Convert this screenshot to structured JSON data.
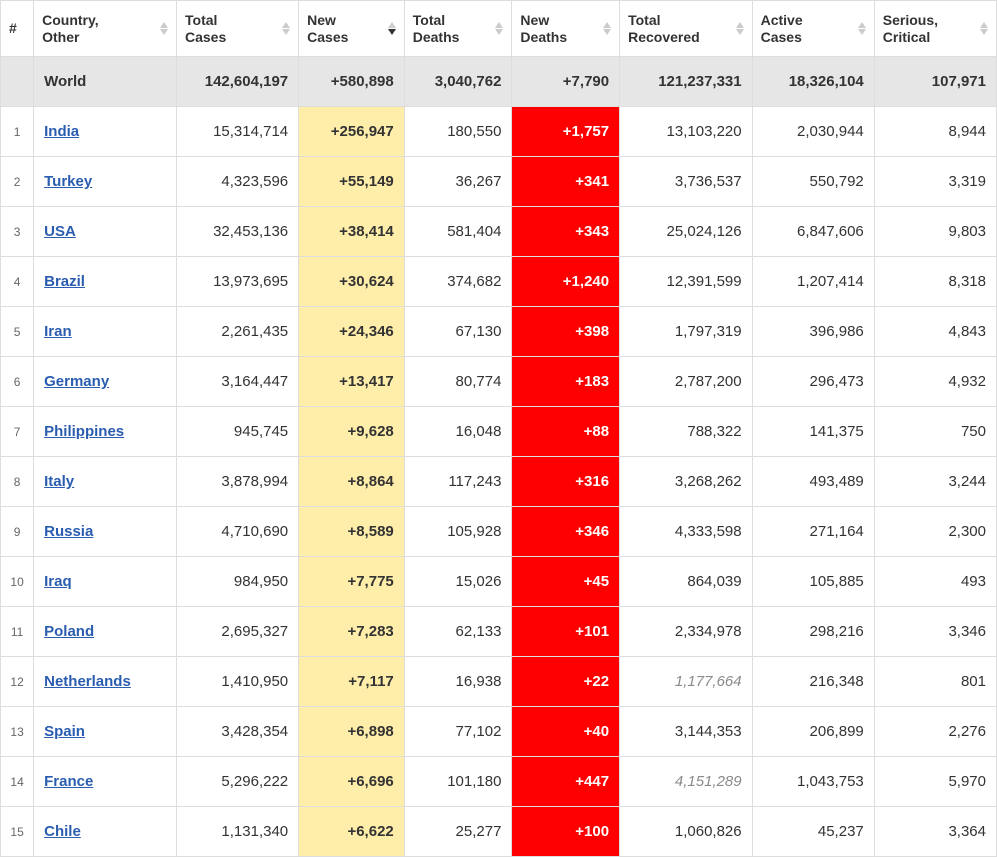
{
  "columns": [
    {
      "key": "rank",
      "label": "#",
      "sortable": false,
      "align": "center"
    },
    {
      "key": "country",
      "label": "Country,\nOther",
      "sortable": true,
      "sortActive": false,
      "align": "left"
    },
    {
      "key": "totalCases",
      "label": "Total\nCases",
      "sortable": true,
      "sortActive": false,
      "align": "right"
    },
    {
      "key": "newCases",
      "label": "New\nCases",
      "sortable": true,
      "sortActive": true,
      "sortDir": "desc",
      "align": "right"
    },
    {
      "key": "totalDeaths",
      "label": "Total\nDeaths",
      "sortable": true,
      "sortActive": false,
      "align": "right"
    },
    {
      "key": "newDeaths",
      "label": "New\nDeaths",
      "sortable": true,
      "sortActive": false,
      "align": "right"
    },
    {
      "key": "totalRecovered",
      "label": "Total\nRecovered",
      "sortable": true,
      "sortActive": false,
      "align": "right"
    },
    {
      "key": "activeCases",
      "label": "Active\nCases",
      "sortable": true,
      "sortActive": false,
      "align": "right"
    },
    {
      "key": "seriousCritical",
      "label": "Serious,\nCritical",
      "sortable": true,
      "sortActive": false,
      "align": "right"
    }
  ],
  "worldRow": {
    "country": "World",
    "totalCases": "142,604,197",
    "newCases": "+580,898",
    "totalDeaths": "3,040,762",
    "newDeaths": "+7,790",
    "totalRecovered": "121,237,331",
    "activeCases": "18,326,104",
    "seriousCritical": "107,971"
  },
  "rows": [
    {
      "rank": "1",
      "country": "India",
      "totalCases": "15,314,714",
      "newCases": "+256,947",
      "totalDeaths": "180,550",
      "newDeaths": "+1,757",
      "totalRecovered": "13,103,220",
      "activeCases": "2,030,944",
      "seriousCritical": "8,944"
    },
    {
      "rank": "2",
      "country": "Turkey",
      "totalCases": "4,323,596",
      "newCases": "+55,149",
      "totalDeaths": "36,267",
      "newDeaths": "+341",
      "totalRecovered": "3,736,537",
      "activeCases": "550,792",
      "seriousCritical": "3,319"
    },
    {
      "rank": "3",
      "country": "USA",
      "totalCases": "32,453,136",
      "newCases": "+38,414",
      "totalDeaths": "581,404",
      "newDeaths": "+343",
      "totalRecovered": "25,024,126",
      "activeCases": "6,847,606",
      "seriousCritical": "9,803"
    },
    {
      "rank": "4",
      "country": "Brazil",
      "totalCases": "13,973,695",
      "newCases": "+30,624",
      "totalDeaths": "374,682",
      "newDeaths": "+1,240",
      "totalRecovered": "12,391,599",
      "activeCases": "1,207,414",
      "seriousCritical": "8,318"
    },
    {
      "rank": "5",
      "country": "Iran",
      "totalCases": "2,261,435",
      "newCases": "+24,346",
      "totalDeaths": "67,130",
      "newDeaths": "+398",
      "totalRecovered": "1,797,319",
      "activeCases": "396,986",
      "seriousCritical": "4,843"
    },
    {
      "rank": "6",
      "country": "Germany",
      "totalCases": "3,164,447",
      "newCases": "+13,417",
      "totalDeaths": "80,774",
      "newDeaths": "+183",
      "totalRecovered": "2,787,200",
      "activeCases": "296,473",
      "seriousCritical": "4,932"
    },
    {
      "rank": "7",
      "country": "Philippines",
      "totalCases": "945,745",
      "newCases": "+9,628",
      "totalDeaths": "16,048",
      "newDeaths": "+88",
      "totalRecovered": "788,322",
      "activeCases": "141,375",
      "seriousCritical": "750"
    },
    {
      "rank": "8",
      "country": "Italy",
      "totalCases": "3,878,994",
      "newCases": "+8,864",
      "totalDeaths": "117,243",
      "newDeaths": "+316",
      "totalRecovered": "3,268,262",
      "activeCases": "493,489",
      "seriousCritical": "3,244"
    },
    {
      "rank": "9",
      "country": "Russia",
      "totalCases": "4,710,690",
      "newCases": "+8,589",
      "totalDeaths": "105,928",
      "newDeaths": "+346",
      "totalRecovered": "4,333,598",
      "activeCases": "271,164",
      "seriousCritical": "2,300"
    },
    {
      "rank": "10",
      "country": "Iraq",
      "totalCases": "984,950",
      "newCases": "+7,775",
      "totalDeaths": "15,026",
      "newDeaths": "+45",
      "totalRecovered": "864,039",
      "activeCases": "105,885",
      "seriousCritical": "493"
    },
    {
      "rank": "11",
      "country": "Poland",
      "totalCases": "2,695,327",
      "newCases": "+7,283",
      "totalDeaths": "62,133",
      "newDeaths": "+101",
      "totalRecovered": "2,334,978",
      "activeCases": "298,216",
      "seriousCritical": "3,346"
    },
    {
      "rank": "12",
      "country": "Netherlands",
      "totalCases": "1,410,950",
      "newCases": "+7,117",
      "totalDeaths": "16,938",
      "newDeaths": "+22",
      "totalRecovered": "1,177,664",
      "recoveredItalic": true,
      "activeCases": "216,348",
      "seriousCritical": "801"
    },
    {
      "rank": "13",
      "country": "Spain",
      "totalCases": "3,428,354",
      "newCases": "+6,898",
      "totalDeaths": "77,102",
      "newDeaths": "+40",
      "totalRecovered": "3,144,353",
      "activeCases": "206,899",
      "seriousCritical": "2,276"
    },
    {
      "rank": "14",
      "country": "France",
      "totalCases": "5,296,222",
      "newCases": "+6,696",
      "totalDeaths": "101,180",
      "newDeaths": "+447",
      "totalRecovered": "4,151,289",
      "recoveredItalic": true,
      "activeCases": "1,043,753",
      "seriousCritical": "5,970"
    },
    {
      "rank": "15",
      "country": "Chile",
      "totalCases": "1,131,340",
      "newCases": "+6,622",
      "totalDeaths": "25,277",
      "newDeaths": "+100",
      "totalRecovered": "1,060,826",
      "activeCases": "45,237",
      "seriousCritical": "3,364"
    }
  ],
  "colors": {
    "newCasesBg": "#ffeeaa",
    "newDeathsBg": "#ff0000",
    "newDeathsText": "#ffffff",
    "worldBg": "#e6e6e6",
    "link": "#2a5db0",
    "border": "#dddddd",
    "sortInactive": "#cccccc",
    "sortActive": "#333333"
  }
}
